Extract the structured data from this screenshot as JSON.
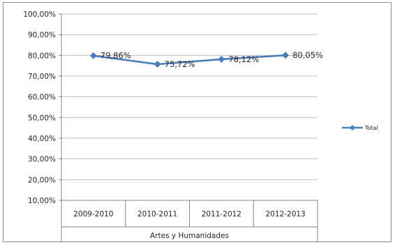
{
  "chart_data": {
    "type": "line",
    "categories": [
      "2009-2010",
      "2010-2011",
      "2011-2012",
      "2012-2013"
    ],
    "group_label": "Artes y Humanidades",
    "series": [
      {
        "name": "Total",
        "values": [
          79.86,
          75.72,
          78.12,
          80.05
        ],
        "labels": [
          "79,86%",
          "75,72%",
          "78,12%",
          "80,05%"
        ],
        "color": "#4a7ebb"
      }
    ],
    "y_ticks": [
      "10,00%",
      "20,00%",
      "30,00%",
      "40,00%",
      "50,00%",
      "60,00%",
      "70,00%",
      "80,00%",
      "90,00%",
      "100,00%"
    ],
    "ylim": [
      10,
      100
    ],
    "grid": true,
    "legend_position": "right",
    "colors": {
      "series": "#4a7ebb",
      "grid": "#bfbfbf",
      "text": "#262626"
    }
  }
}
